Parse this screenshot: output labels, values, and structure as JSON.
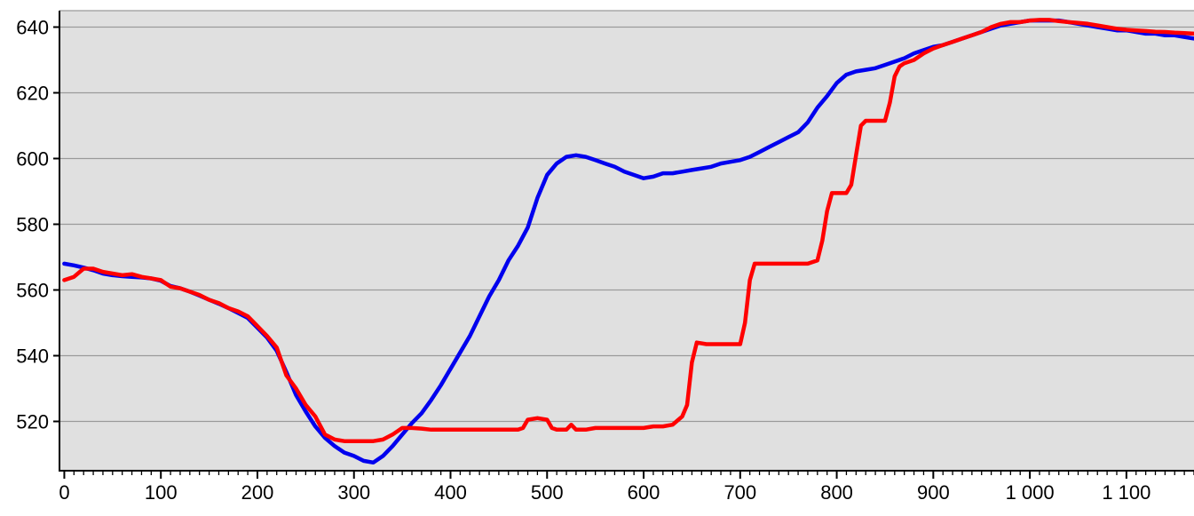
{
  "chart_data": {
    "type": "line",
    "title": "",
    "xlabel": "",
    "ylabel": "",
    "xlim": [
      -5,
      1170
    ],
    "ylim": [
      505,
      645
    ],
    "x_ticks": [
      {
        "value": 0,
        "label": "0"
      },
      {
        "value": 100,
        "label": "100"
      },
      {
        "value": 200,
        "label": "200"
      },
      {
        "value": 300,
        "label": "300"
      },
      {
        "value": 400,
        "label": "400"
      },
      {
        "value": 500,
        "label": "500"
      },
      {
        "value": 600,
        "label": "600"
      },
      {
        "value": 700,
        "label": "700"
      },
      {
        "value": 800,
        "label": "800"
      },
      {
        "value": 900,
        "label": "900"
      },
      {
        "value": 1000,
        "label": "1 000"
      },
      {
        "value": 1100,
        "label": "1 100"
      }
    ],
    "y_ticks": [
      {
        "value": 520,
        "label": "520"
      },
      {
        "value": 540,
        "label": "540"
      },
      {
        "value": 560,
        "label": "560"
      },
      {
        "value": 580,
        "label": "580"
      },
      {
        "value": 600,
        "label": "600"
      },
      {
        "value": 620,
        "label": "620"
      },
      {
        "value": 640,
        "label": "640"
      }
    ],
    "grid": "horizontal",
    "legend": "none",
    "colors": {
      "plot_background": "#e0e0e0",
      "gridline": "#9a9a9a",
      "axis": "#000000"
    },
    "series": [
      {
        "color": "#0000ee",
        "points": [
          [
            0,
            568
          ],
          [
            10,
            567.5
          ],
          [
            20,
            566.8
          ],
          [
            30,
            566
          ],
          [
            40,
            565
          ],
          [
            50,
            564.5
          ],
          [
            60,
            564.2
          ],
          [
            70,
            564
          ],
          [
            80,
            563.8
          ],
          [
            90,
            563.5
          ],
          [
            100,
            562.8
          ],
          [
            110,
            561.2
          ],
          [
            120,
            560.5
          ],
          [
            130,
            559.5
          ],
          [
            140,
            558.3
          ],
          [
            150,
            557
          ],
          [
            160,
            555.8
          ],
          [
            170,
            554.5
          ],
          [
            180,
            553
          ],
          [
            190,
            551.5
          ],
          [
            200,
            548.5
          ],
          [
            210,
            545.5
          ],
          [
            220,
            541.5
          ],
          [
            230,
            535
          ],
          [
            240,
            528
          ],
          [
            250,
            523
          ],
          [
            260,
            518.5
          ],
          [
            270,
            515
          ],
          [
            280,
            512.5
          ],
          [
            290,
            510.5
          ],
          [
            300,
            509.5
          ],
          [
            310,
            508
          ],
          [
            320,
            507.5
          ],
          [
            330,
            509.5
          ],
          [
            340,
            512.5
          ],
          [
            350,
            516
          ],
          [
            360,
            519.5
          ],
          [
            370,
            522.5
          ],
          [
            380,
            526.5
          ],
          [
            390,
            531
          ],
          [
            400,
            536
          ],
          [
            410,
            541
          ],
          [
            420,
            546
          ],
          [
            430,
            552
          ],
          [
            440,
            558
          ],
          [
            450,
            563
          ],
          [
            460,
            569
          ],
          [
            470,
            573.5
          ],
          [
            480,
            579
          ],
          [
            490,
            588
          ],
          [
            500,
            595
          ],
          [
            510,
            598.5
          ],
          [
            520,
            600.5
          ],
          [
            530,
            601
          ],
          [
            540,
            600.5
          ],
          [
            550,
            599.5
          ],
          [
            560,
            598.5
          ],
          [
            570,
            597.5
          ],
          [
            580,
            596
          ],
          [
            590,
            595
          ],
          [
            600,
            594
          ],
          [
            610,
            594.5
          ],
          [
            620,
            595.5
          ],
          [
            630,
            595.5
          ],
          [
            640,
            596
          ],
          [
            650,
            596.5
          ],
          [
            660,
            597
          ],
          [
            670,
            597.5
          ],
          [
            680,
            598.5
          ],
          [
            690,
            599
          ],
          [
            700,
            599.5
          ],
          [
            710,
            600.5
          ],
          [
            720,
            602
          ],
          [
            730,
            603.5
          ],
          [
            740,
            605
          ],
          [
            750,
            606.5
          ],
          [
            760,
            608
          ],
          [
            770,
            611
          ],
          [
            780,
            615.5
          ],
          [
            790,
            619
          ],
          [
            800,
            623
          ],
          [
            810,
            625.5
          ],
          [
            820,
            626.5
          ],
          [
            830,
            627
          ],
          [
            840,
            627.5
          ],
          [
            850,
            628.5
          ],
          [
            860,
            629.5
          ],
          [
            870,
            630.5
          ],
          [
            880,
            632
          ],
          [
            890,
            633
          ],
          [
            900,
            634
          ],
          [
            910,
            634.5
          ],
          [
            920,
            635.5
          ],
          [
            930,
            636.5
          ],
          [
            940,
            637.5
          ],
          [
            950,
            638.5
          ],
          [
            960,
            639.5
          ],
          [
            970,
            640.5
          ],
          [
            980,
            641
          ],
          [
            990,
            641.5
          ],
          [
            1000,
            642
          ],
          [
            1010,
            642
          ],
          [
            1020,
            642
          ],
          [
            1030,
            642
          ],
          [
            1040,
            641.5
          ],
          [
            1050,
            641
          ],
          [
            1060,
            640.5
          ],
          [
            1070,
            640
          ],
          [
            1080,
            639.5
          ],
          [
            1090,
            639
          ],
          [
            1100,
            639
          ],
          [
            1110,
            638.5
          ],
          [
            1120,
            638
          ],
          [
            1130,
            638
          ],
          [
            1140,
            637.5
          ],
          [
            1150,
            637.5
          ],
          [
            1160,
            637
          ],
          [
            1170,
            636.5
          ]
        ]
      },
      {
        "color": "#ff0000",
        "points": [
          [
            0,
            563
          ],
          [
            10,
            564
          ],
          [
            20,
            566.5
          ],
          [
            30,
            566.5
          ],
          [
            40,
            565.5
          ],
          [
            50,
            565
          ],
          [
            60,
            564.5
          ],
          [
            70,
            564.8
          ],
          [
            80,
            564
          ],
          [
            90,
            563.5
          ],
          [
            100,
            563
          ],
          [
            110,
            561
          ],
          [
            120,
            560.5
          ],
          [
            130,
            559.5
          ],
          [
            140,
            558.5
          ],
          [
            150,
            557
          ],
          [
            160,
            556
          ],
          [
            170,
            554.5
          ],
          [
            180,
            553.5
          ],
          [
            190,
            552
          ],
          [
            200,
            549
          ],
          [
            210,
            546
          ],
          [
            220,
            542.5
          ],
          [
            230,
            534
          ],
          [
            240,
            530
          ],
          [
            250,
            525
          ],
          [
            260,
            521.5
          ],
          [
            270,
            516
          ],
          [
            280,
            514.5
          ],
          [
            290,
            514
          ],
          [
            300,
            514
          ],
          [
            310,
            514
          ],
          [
            320,
            514
          ],
          [
            330,
            514.5
          ],
          [
            340,
            516
          ],
          [
            350,
            518
          ],
          [
            360,
            518
          ],
          [
            370,
            517.8
          ],
          [
            380,
            517.5
          ],
          [
            390,
            517.5
          ],
          [
            400,
            517.5
          ],
          [
            410,
            517.5
          ],
          [
            420,
            517.5
          ],
          [
            430,
            517.5
          ],
          [
            440,
            517.5
          ],
          [
            450,
            517.5
          ],
          [
            460,
            517.5
          ],
          [
            470,
            517.5
          ],
          [
            475,
            518
          ],
          [
            480,
            520.5
          ],
          [
            490,
            521
          ],
          [
            500,
            520.5
          ],
          [
            505,
            518
          ],
          [
            510,
            517.5
          ],
          [
            520,
            517.5
          ],
          [
            525,
            519
          ],
          [
            530,
            517.5
          ],
          [
            540,
            517.5
          ],
          [
            550,
            518
          ],
          [
            560,
            518
          ],
          [
            570,
            518
          ],
          [
            580,
            518
          ],
          [
            590,
            518
          ],
          [
            600,
            518
          ],
          [
            610,
            518.5
          ],
          [
            620,
            518.5
          ],
          [
            630,
            519
          ],
          [
            640,
            521.5
          ],
          [
            645,
            525
          ],
          [
            650,
            538
          ],
          [
            655,
            544
          ],
          [
            665,
            543.5
          ],
          [
            680,
            543.5
          ],
          [
            700,
            543.5
          ],
          [
            705,
            550
          ],
          [
            710,
            563
          ],
          [
            715,
            568
          ],
          [
            730,
            568
          ],
          [
            750,
            568
          ],
          [
            770,
            568
          ],
          [
            780,
            569
          ],
          [
            785,
            575
          ],
          [
            790,
            584
          ],
          [
            795,
            589.5
          ],
          [
            810,
            589.5
          ],
          [
            815,
            592
          ],
          [
            820,
            601
          ],
          [
            825,
            610
          ],
          [
            830,
            611.5
          ],
          [
            850,
            611.5
          ],
          [
            855,
            617
          ],
          [
            860,
            625
          ],
          [
            865,
            628
          ],
          [
            870,
            629
          ],
          [
            880,
            630
          ],
          [
            890,
            632
          ],
          [
            900,
            633.5
          ],
          [
            910,
            634.5
          ],
          [
            920,
            635.5
          ],
          [
            930,
            636.5
          ],
          [
            940,
            637.5
          ],
          [
            950,
            638.5
          ],
          [
            960,
            640
          ],
          [
            970,
            641
          ],
          [
            980,
            641.5
          ],
          [
            990,
            641.5
          ],
          [
            1000,
            642
          ],
          [
            1010,
            642.2
          ],
          [
            1020,
            642.2
          ],
          [
            1030,
            641.8
          ],
          [
            1040,
            641.5
          ],
          [
            1050,
            641.3
          ],
          [
            1060,
            641
          ],
          [
            1070,
            640.5
          ],
          [
            1080,
            640
          ],
          [
            1090,
            639.5
          ],
          [
            1100,
            639.2
          ],
          [
            1110,
            639
          ],
          [
            1120,
            638.8
          ],
          [
            1130,
            638.6
          ],
          [
            1140,
            638.5
          ],
          [
            1150,
            638.3
          ],
          [
            1160,
            638.2
          ],
          [
            1170,
            638
          ]
        ]
      }
    ]
  }
}
